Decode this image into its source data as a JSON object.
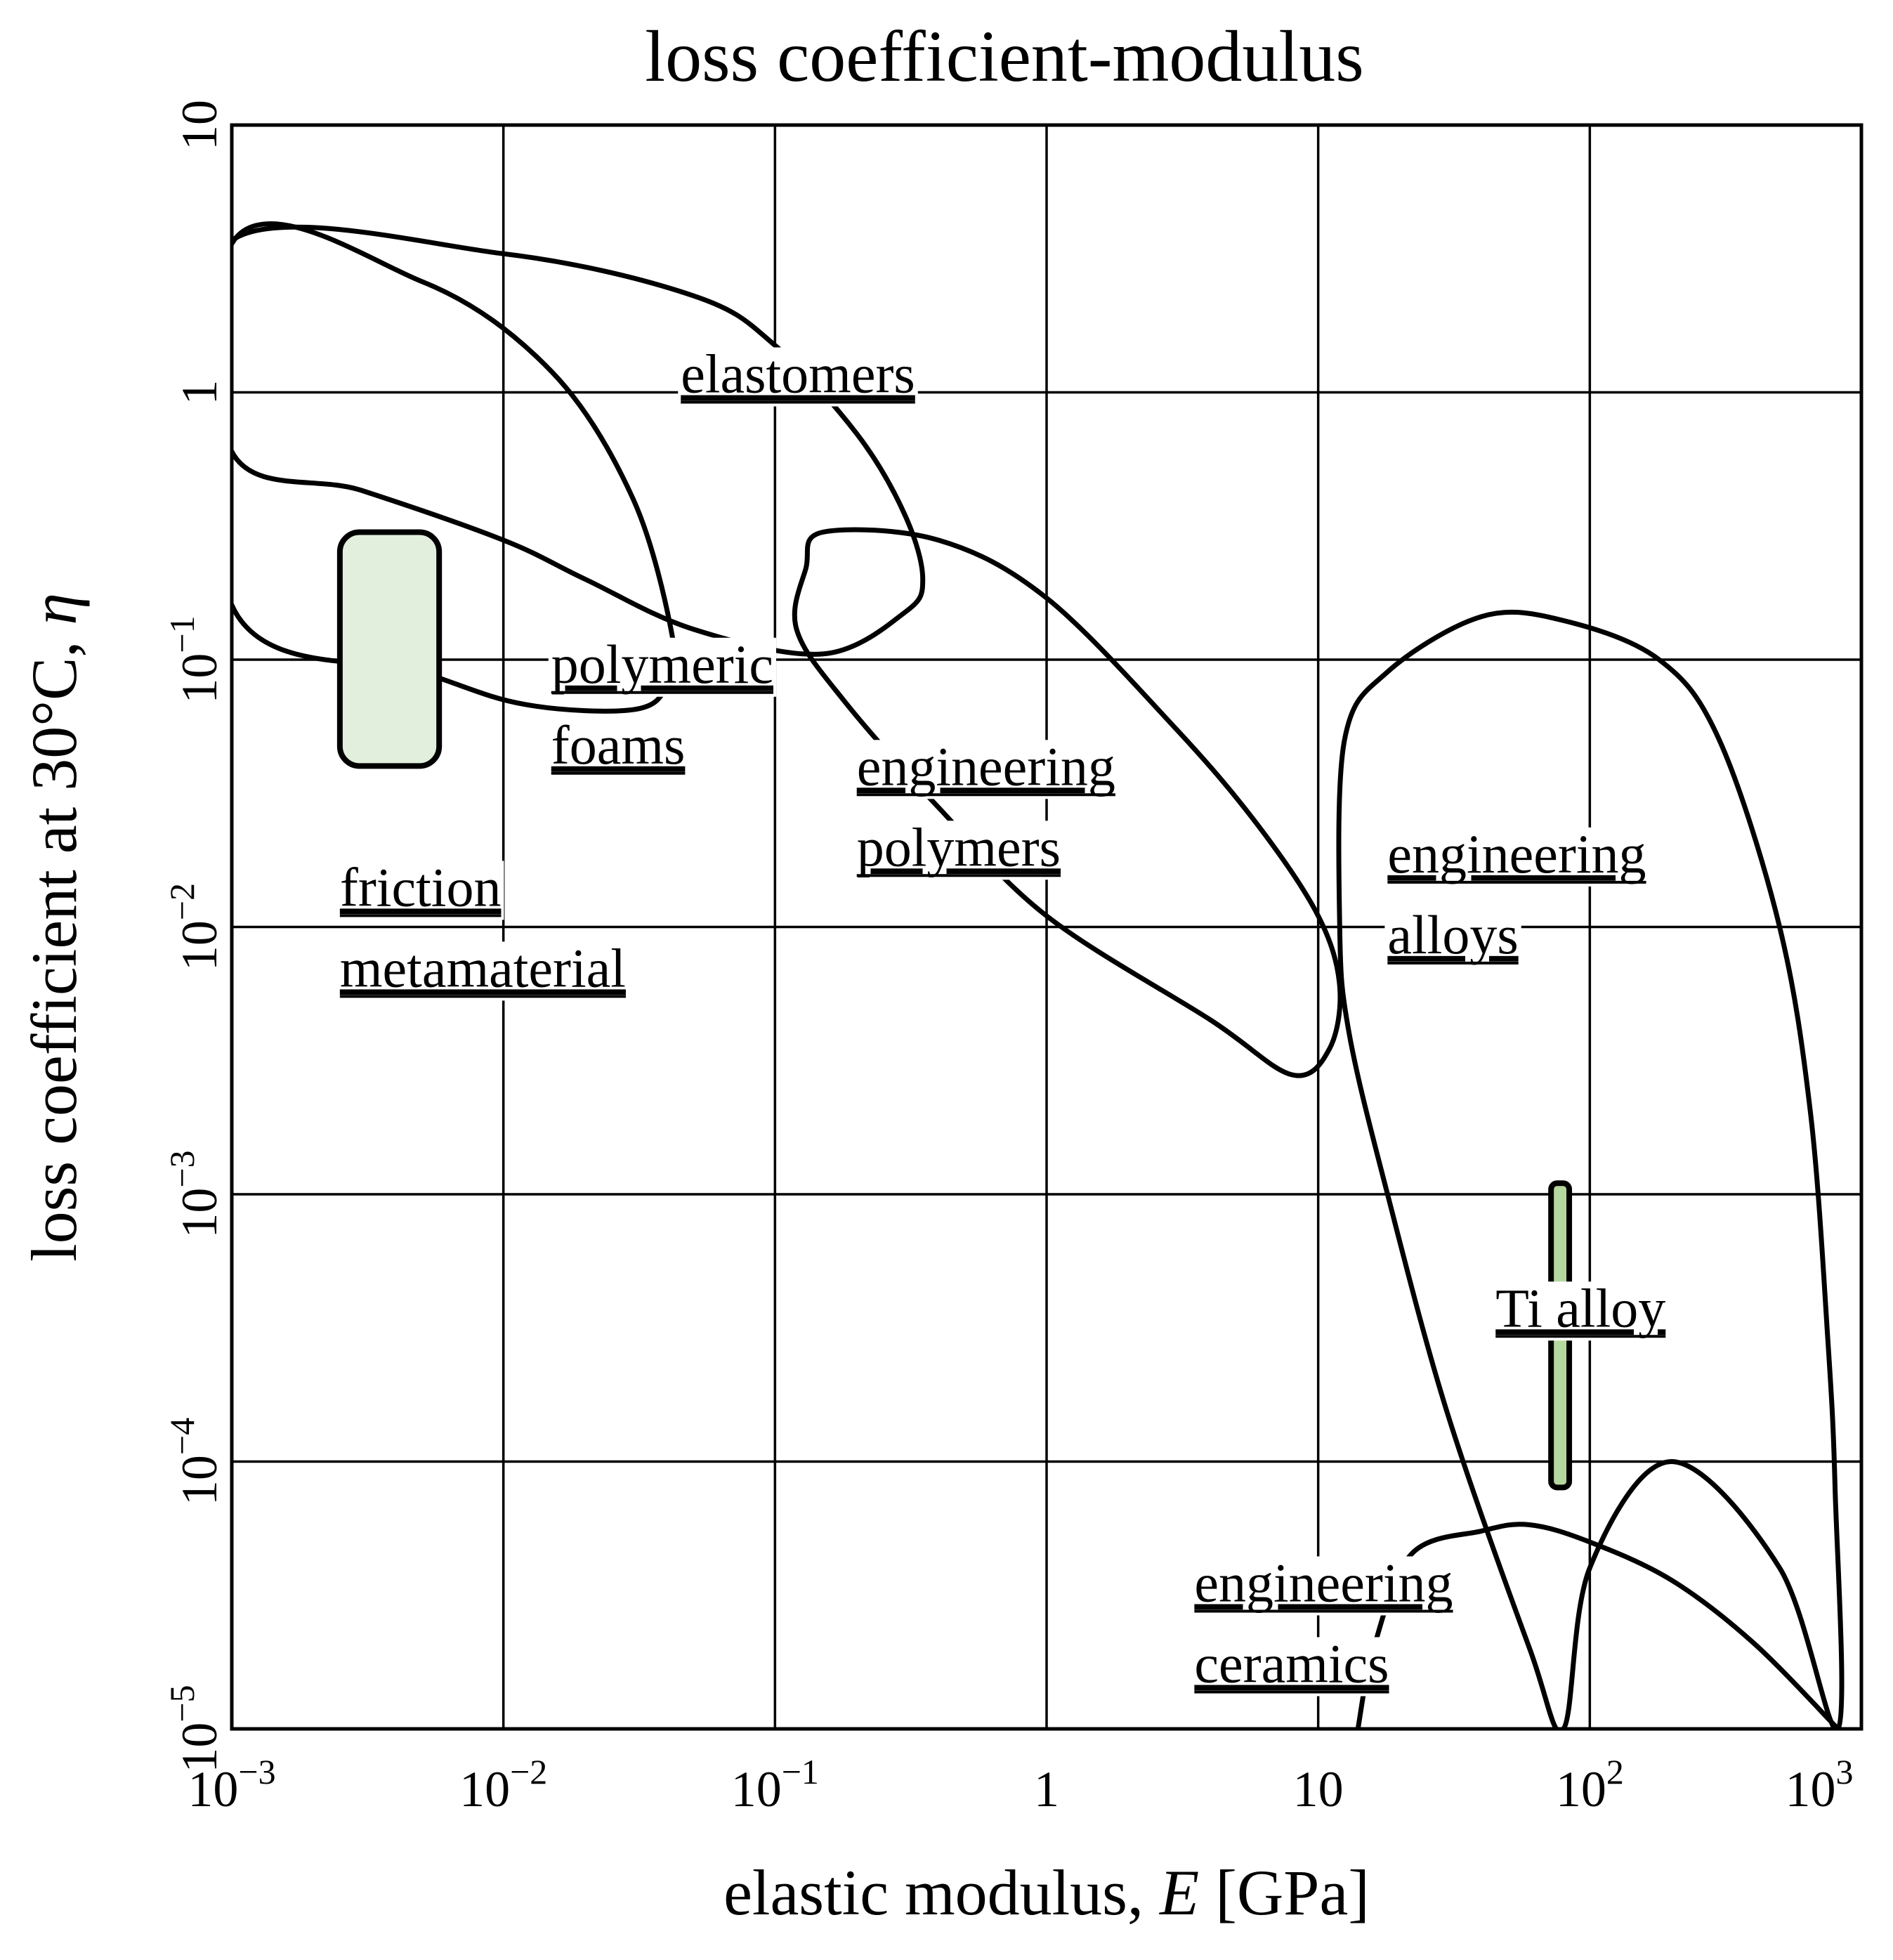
{
  "chart_data": {
    "type": "area",
    "title": "loss coefficient-modulus",
    "xlabel": "elastic modulus, ",
    "xlabel_symbol": "E",
    "xlabel_unit": " [GPa]",
    "ylabel": "loss coefficient at 30°C, ",
    "ylabel_symbol": "η",
    "x_scale": "log",
    "y_scale": "log",
    "xlim": [
      0.001,
      1000
    ],
    "ylim": [
      1e-05,
      10
    ],
    "grid": true,
    "x_ticks": [
      {
        "value": 0.001,
        "base": "10",
        "exp": "−3"
      },
      {
        "value": 0.01,
        "base": "10",
        "exp": "−2"
      },
      {
        "value": 0.1,
        "base": "10",
        "exp": "−1"
      },
      {
        "value": 1,
        "base": "1",
        "exp": ""
      },
      {
        "value": 10,
        "base": "10",
        "exp": ""
      },
      {
        "value": 100,
        "base": "10",
        "exp": "2"
      },
      {
        "value": 1000,
        "base": "10",
        "exp": "3"
      }
    ],
    "y_ticks": [
      {
        "value": 10,
        "base": "10",
        "exp": ""
      },
      {
        "value": 1,
        "base": "1",
        "exp": ""
      },
      {
        "value": 0.1,
        "base": "10",
        "exp": "−1"
      },
      {
        "value": 0.01,
        "base": "10",
        "exp": "−2"
      },
      {
        "value": 0.001,
        "base": "10",
        "exp": "−3"
      },
      {
        "value": 0.0001,
        "base": "10",
        "exp": "−4"
      },
      {
        "value": 1e-05,
        "base": "10",
        "exp": "−5"
      }
    ],
    "regions": [
      {
        "name": "elastomers",
        "lines": [
          "elastomers"
        ],
        "label_at": [
          0.045,
          1.0
        ],
        "outline": [
          [
            0.001,
            3.7
          ],
          [
            0.01,
            3.3
          ],
          [
            0.05,
            2.3
          ],
          [
            0.1,
            1.5
          ],
          [
            0.2,
            0.7
          ],
          [
            0.3,
            0.35
          ],
          [
            0.35,
            0.2
          ],
          [
            0.3,
            0.15
          ],
          [
            0.15,
            0.105
          ],
          [
            0.05,
            0.13
          ],
          [
            0.02,
            0.2
          ],
          [
            0.01,
            0.28
          ],
          [
            0.003,
            0.43
          ],
          [
            0.001,
            0.6
          ]
        ]
      },
      {
        "name": "polymeric foams",
        "lines": [
          "polymeric",
          "foams"
        ],
        "label_at": [
          0.015,
          0.082
        ],
        "outline": [
          [
            0.001,
            3.6
          ],
          [
            0.005,
            2.6
          ],
          [
            0.015,
            1.2
          ],
          [
            0.03,
            0.4
          ],
          [
            0.042,
            0.12
          ],
          [
            0.04,
            0.08
          ],
          [
            0.03,
            0.065
          ],
          [
            0.012,
            0.068
          ],
          [
            0.005,
            0.09
          ],
          [
            0.001,
            0.16
          ]
        ]
      },
      {
        "name": "engineering polymers",
        "lines": [
          "engineering",
          "polymers"
        ],
        "label_at": [
          0.2,
          0.034
        ],
        "outline": [
          [
            0.15,
            0.3
          ],
          [
            0.4,
            0.28
          ],
          [
            1,
            0.17
          ],
          [
            3,
            0.055
          ],
          [
            6,
            0.024
          ],
          [
            10,
            0.011
          ],
          [
            12,
            0.006
          ],
          [
            11,
            0.0035
          ],
          [
            8,
            0.0028
          ],
          [
            4,
            0.0045
          ],
          [
            1,
            0.011
          ],
          [
            0.4,
            0.028
          ],
          [
            0.18,
            0.07
          ],
          [
            0.12,
            0.13
          ],
          [
            0.13,
            0.22
          ]
        ]
      },
      {
        "name": "engineering alloys",
        "lines": [
          "engineering",
          "alloys"
        ],
        "label_at": [
          18,
          0.016
        ],
        "outline": [
          [
            12,
            0.01
          ],
          [
            12.5,
            0.05
          ],
          [
            18,
            0.09
          ],
          [
            40,
            0.145
          ],
          [
            80,
            0.14
          ],
          [
            180,
            0.1
          ],
          [
            300,
            0.05
          ],
          [
            500,
            0.01
          ],
          [
            650,
            0.002
          ],
          [
            750,
            0.0003
          ],
          [
            800,
            8e-05
          ],
          [
            820,
            1e-05
          ],
          [
            500,
            4e-05
          ],
          [
            200,
            0.0001
          ],
          [
            100,
            4e-05
          ],
          [
            80,
            1e-05
          ],
          [
            60,
            2e-05
          ],
          [
            30,
            0.00015
          ],
          [
            18,
            0.001
          ],
          [
            13,
            0.004
          ]
        ]
      },
      {
        "name": "engineering ceramics",
        "lines": [
          "engineering",
          "ceramics"
        ],
        "label_at": [
          3.5,
          3e-05
        ],
        "outline": [
          [
            14,
            1e-05
          ],
          [
            16,
            2e-05
          ],
          [
            22,
            4.5e-05
          ],
          [
            40,
            5.5e-05
          ],
          [
            60,
            5.8e-05
          ],
          [
            100,
            5e-05
          ],
          [
            200,
            3.6e-05
          ],
          [
            400,
            2.1e-05
          ],
          [
            820,
            1e-05
          ]
        ]
      }
    ],
    "highlighted": [
      {
        "name": "friction metamaterial",
        "lines": [
          "friction",
          "metamaterial"
        ],
        "color": "#e2efdc",
        "x": [
          0.0025,
          0.0058
        ],
        "y": [
          0.04,
          0.3
        ],
        "label_at": [
          0.0025,
          0.012
        ]
      },
      {
        "name": "Ti alloy",
        "lines": [
          "Ti alloy"
        ],
        "color": "#b5d7a0",
        "x": [
          72,
          84
        ],
        "y": [
          8e-05,
          0.0011
        ],
        "label_at": [
          45,
          0.00032
        ]
      }
    ]
  }
}
